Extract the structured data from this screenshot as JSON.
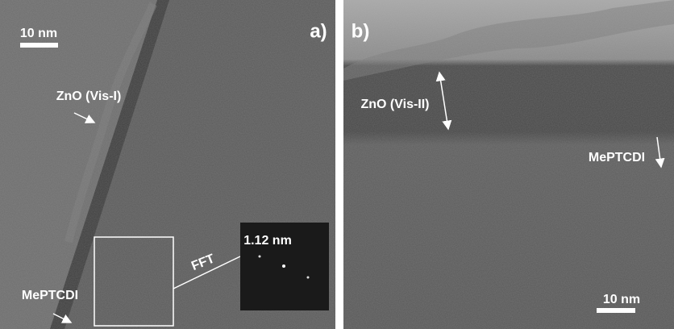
{
  "panels": [
    {
      "label": "a)",
      "scale_bar": "10 nm",
      "annotations": [
        "ZnO (Vis-I)",
        "MePTCDI",
        "FFT"
      ],
      "inset_label": "1.12 nm"
    },
    {
      "label": "b)",
      "scale_bar": "10 nm",
      "annotations": [
        "ZnO (Vis-II)",
        "MePTCDI"
      ]
    }
  ]
}
